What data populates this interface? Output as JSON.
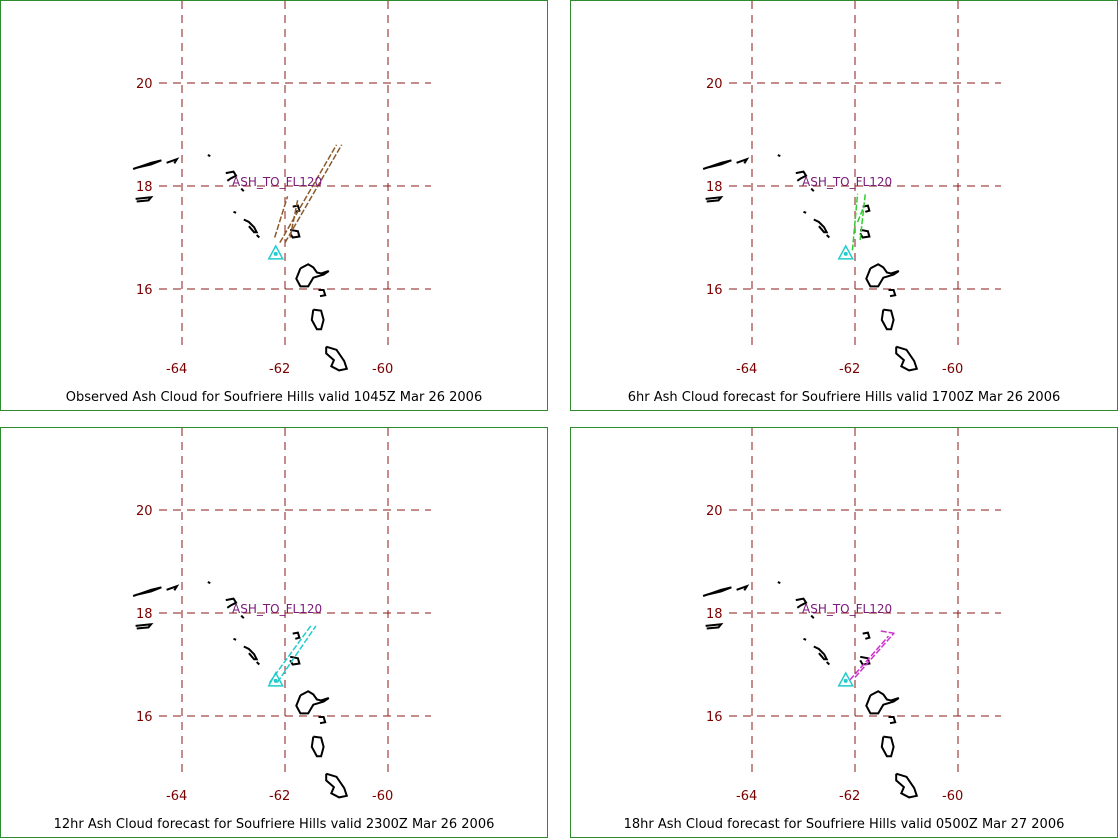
{
  "panels": [
    {
      "caption": "Observed Ash Cloud for Soufriere  Hills valid 1045Z Mar 26 2006",
      "ash_label": "ASH_TO_FL120",
      "cloud_color": "#8b5a2b",
      "cloud_lines": [
        [
          [
            -62.1,
            16.9
          ],
          [
            -61.0,
            18.8
          ]
        ],
        [
          [
            -62.0,
            16.9
          ],
          [
            -60.9,
            18.8
          ]
        ],
        [
          [
            -62.2,
            17.0
          ],
          [
            -61.95,
            17.8
          ]
        ],
        [
          [
            -61.9,
            17.0
          ],
          [
            -61.75,
            17.75
          ]
        ]
      ]
    },
    {
      "caption": "6hr Ash Cloud forecast for Soufriere  Hills valid 1700Z Mar 26 2006",
      "ash_label": "ASH_TO_FL120",
      "cloud_color": "#33cc33",
      "cloud_lines": [
        [
          [
            -62.05,
            16.75
          ],
          [
            -61.95,
            17.85
          ]
        ],
        [
          [
            -61.9,
            16.95
          ],
          [
            -61.8,
            17.85
          ]
        ],
        [
          [
            -61.95,
            17.3
          ],
          [
            -61.85,
            17.55
          ]
        ]
      ]
    },
    {
      "caption": "12hr Ash Cloud forecast for Soufriere  Hills valid 2300Z Mar 26 2006",
      "ash_label": "ASH_TO_FL120",
      "cloud_color": "#22cccc",
      "cloud_lines": [
        [
          [
            -62.3,
            16.65
          ],
          [
            -61.5,
            17.75
          ]
        ],
        [
          [
            -62.15,
            16.65
          ],
          [
            -61.4,
            17.75
          ]
        ]
      ]
    },
    {
      "caption": "18hr Ash Cloud forecast for Soufriere  Hills valid 0500Z Mar 27 2006",
      "ash_label": "ASH_TO_FL120",
      "cloud_color": "#cc33cc",
      "cloud_lines": [
        [
          [
            -62.1,
            16.7
          ],
          [
            -61.35,
            17.55
          ]
        ],
        [
          [
            -62.0,
            16.75
          ],
          [
            -61.25,
            17.6
          ]
        ],
        [
          [
            -61.5,
            17.65
          ],
          [
            -61.2,
            17.6
          ]
        ]
      ]
    }
  ],
  "map": {
    "lon_ticks": [
      "-64",
      "-62",
      "-60"
    ],
    "lat_ticks": [
      "20",
      "18",
      "16"
    ],
    "lon_values": [
      -64,
      -62,
      -60
    ],
    "lat_values": [
      20,
      18,
      16
    ],
    "volcano_marker": [
      -62.18,
      16.72
    ],
    "grid_color": "#8b1a1a",
    "tick_color": "#7a0000",
    "frame_color": "#2e8b2e",
    "coast_color": "#000000",
    "marker_color": "#22cccc"
  }
}
